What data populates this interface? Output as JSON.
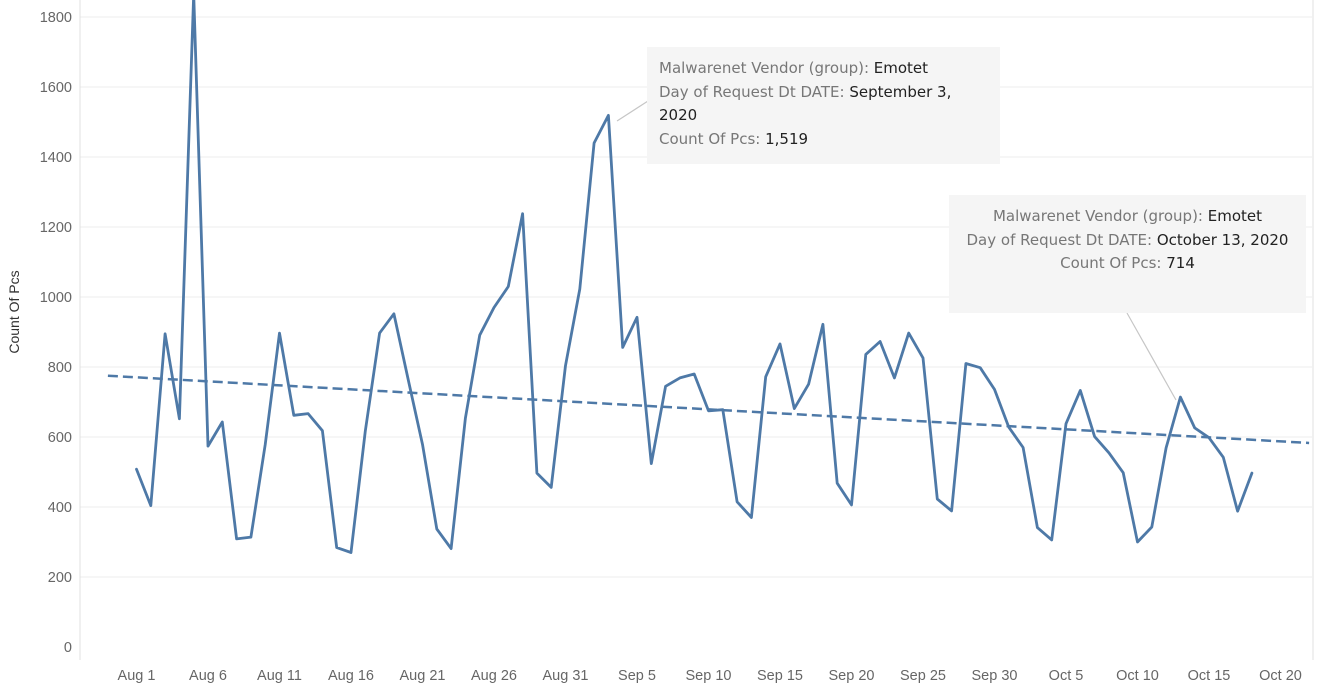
{
  "chart_data": {
    "type": "line",
    "ylabel": "Count Of Pcs",
    "xlabel": "",
    "ylim": [
      0,
      1850
    ],
    "yticks": [
      0,
      200,
      400,
      600,
      800,
      1000,
      1200,
      1400,
      1600,
      1800
    ],
    "x_start": "2020-08-01",
    "x_ticks": [
      {
        "date": "2020-08-01",
        "label": "Aug 1"
      },
      {
        "date": "2020-08-06",
        "label": "Aug 6"
      },
      {
        "date": "2020-08-11",
        "label": "Aug 11"
      },
      {
        "date": "2020-08-16",
        "label": "Aug 16"
      },
      {
        "date": "2020-08-21",
        "label": "Aug 21"
      },
      {
        "date": "2020-08-26",
        "label": "Aug 26"
      },
      {
        "date": "2020-08-31",
        "label": "Aug 31"
      },
      {
        "date": "2020-09-05",
        "label": "Sep 5"
      },
      {
        "date": "2020-09-10",
        "label": "Sep 10"
      },
      {
        "date": "2020-09-15",
        "label": "Sep 15"
      },
      {
        "date": "2020-09-20",
        "label": "Sep 20"
      },
      {
        "date": "2020-09-25",
        "label": "Sep 25"
      },
      {
        "date": "2020-09-30",
        "label": "Sep 30"
      },
      {
        "date": "2020-10-05",
        "label": "Oct 5"
      },
      {
        "date": "2020-10-10",
        "label": "Oct 10"
      },
      {
        "date": "2020-10-15",
        "label": "Oct 15"
      },
      {
        "date": "2020-10-20",
        "label": "Oct 20"
      }
    ],
    "series": [
      {
        "values": [
          508,
          404,
          895,
          652,
          1865,
          574,
          643,
          309,
          314,
          578,
          897,
          662,
          667,
          618,
          284,
          270,
          617,
          897,
          952,
          764,
          579,
          337,
          281,
          654,
          891,
          970,
          1030,
          1238,
          497,
          456,
          804,
          1023,
          1440,
          1519,
          856,
          942,
          524,
          745,
          769,
          780,
          675,
          678,
          415,
          370,
          772,
          866,
          681,
          751,
          922,
          468,
          406,
          836,
          873,
          769,
          897,
          826,
          423,
          389,
          810,
          798,
          736,
          628,
          570,
          341,
          306,
          638,
          733,
          601,
          555,
          498,
          300,
          343,
          569,
          714,
          626,
          598,
          542,
          388,
          497
        ],
        "color": "#4e79a7"
      }
    ],
    "trend_line": {
      "start_value": 775,
      "end_value": 583,
      "start_date": "2020-07-30",
      "end_date": "2020-10-22",
      "style": "dashed",
      "color": "#4e79a7"
    },
    "grid": true,
    "legend": "none"
  },
  "tooltips": [
    {
      "vendor_label": "Malwarenet Vendor (group):",
      "vendor_value": "Emotet",
      "date_label": "Day of Request Dt DATE:",
      "date_value": "September 3, 2020",
      "count_label": "Count Of Pcs:",
      "count_value": "1,519"
    },
    {
      "vendor_label": "Malwarenet Vendor (group):",
      "vendor_value": "Emotet",
      "date_label": "Day of Request Dt DATE:",
      "date_value": "October 13, 2020",
      "count_label": "Count Of Pcs:",
      "count_value": "714"
    }
  ]
}
